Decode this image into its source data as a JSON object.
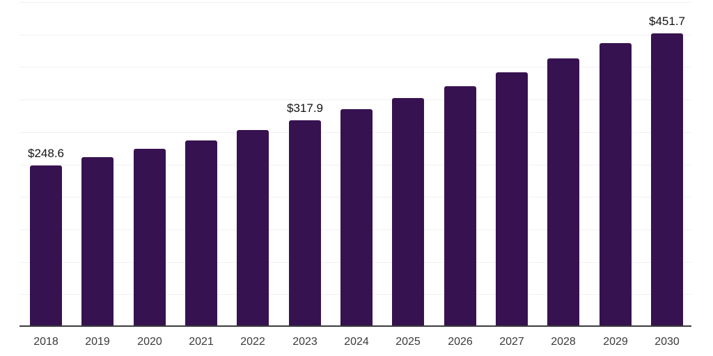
{
  "chart_data": {
    "type": "bar",
    "title": "",
    "xlabel": "",
    "ylabel": "",
    "categories": [
      "2018",
      "2019",
      "2020",
      "2021",
      "2022",
      "2023",
      "2024",
      "2025",
      "2026",
      "2027",
      "2028",
      "2029",
      "2030"
    ],
    "values": [
      248.6,
      261.3,
      273.6,
      287.2,
      302.6,
      317.9,
      335.1,
      352.3,
      370.9,
      391.6,
      413.6,
      437.3,
      451.7
    ],
    "data_labels": [
      "$248.6",
      null,
      null,
      null,
      null,
      "$317.9",
      null,
      null,
      null,
      null,
      null,
      null,
      "$451.7"
    ],
    "labeled_values": {
      "2018": "$248.6",
      "2023": "$317.9",
      "2030": "$451.7"
    },
    "ylim": [
      0,
      500
    ],
    "gridline_step": 50,
    "grid": true,
    "legend": false,
    "axis_tick_labels_y": [],
    "colors": {
      "bar": "#371250",
      "grid": "#f1f1f1",
      "axis_line": "#3b3b3b",
      "value_label": "#121212",
      "tick_label": "#3a3a3a",
      "background": "#ffffff"
    }
  }
}
